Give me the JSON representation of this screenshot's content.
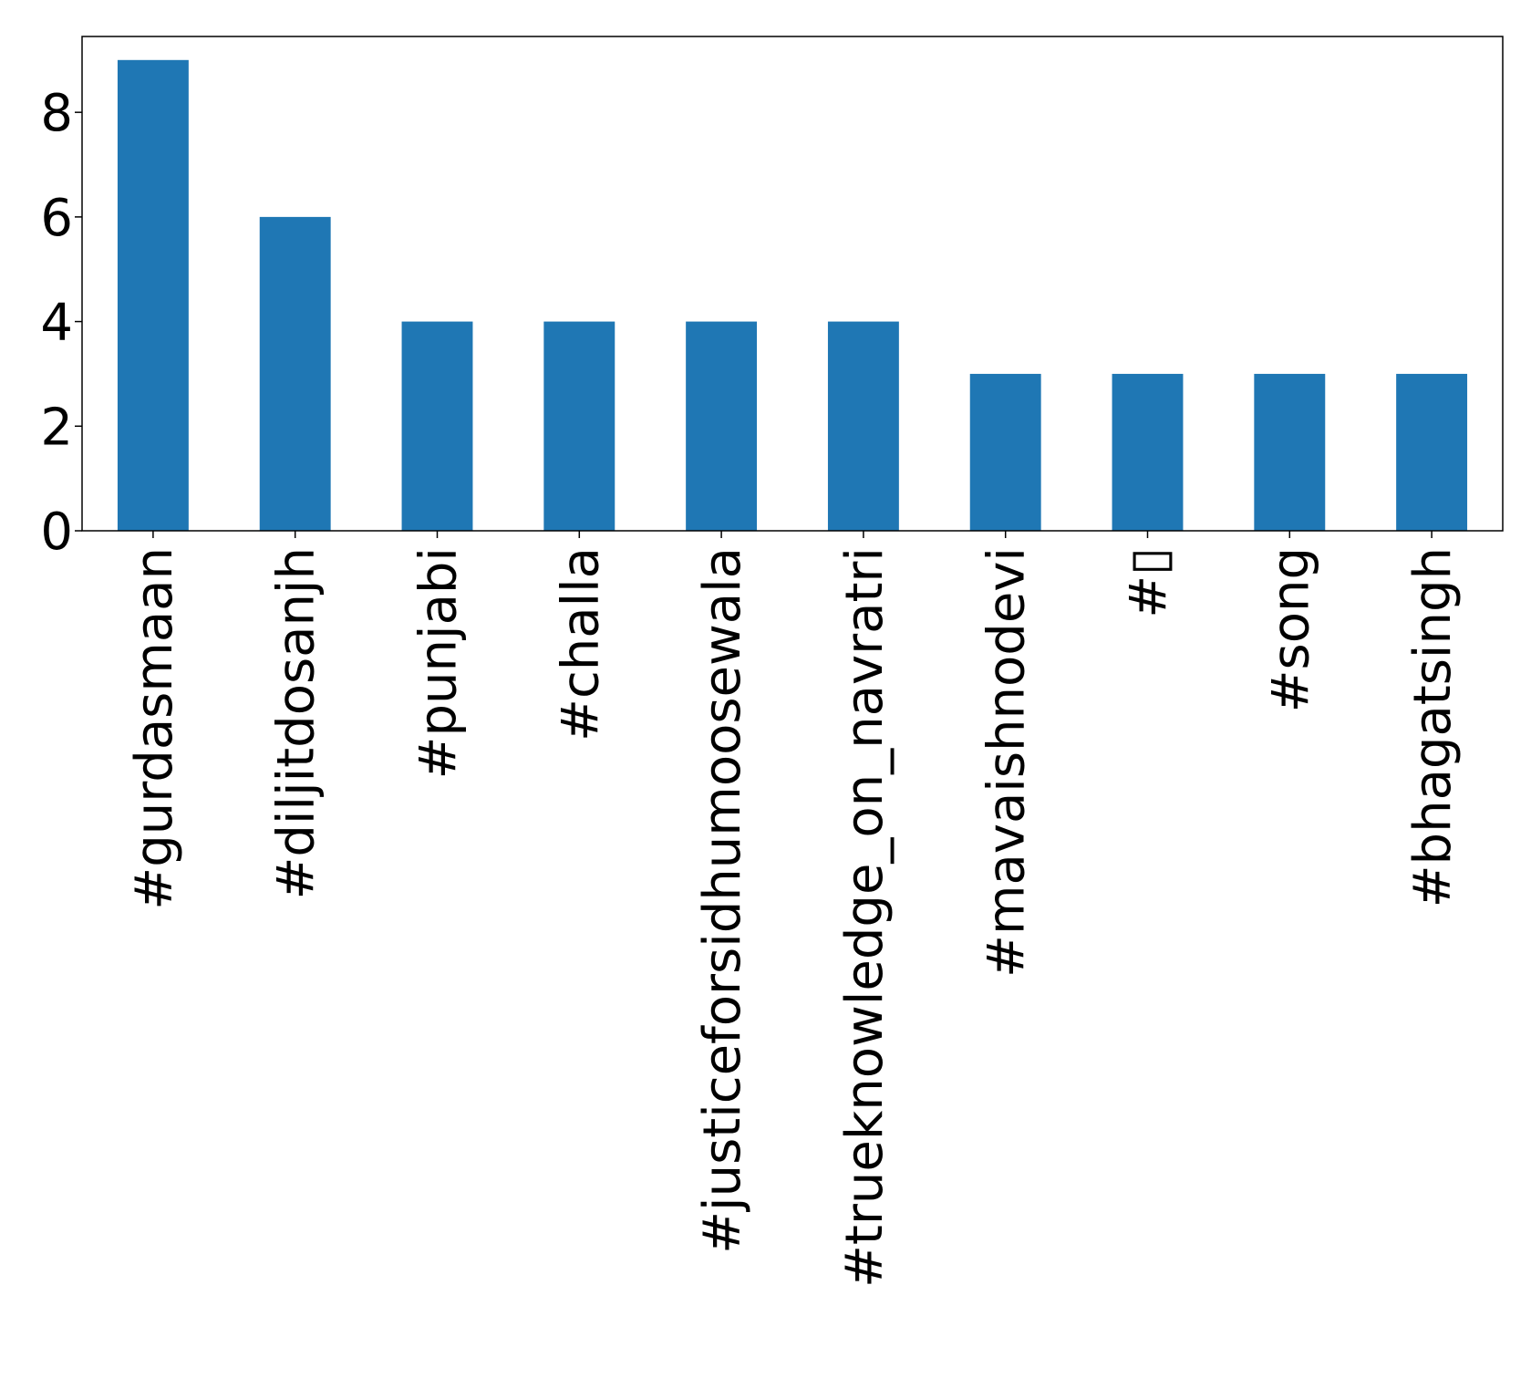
{
  "chart_data": {
    "type": "bar",
    "categories": [
      "#gurdasmaan",
      "#diljitdosanjh",
      "#punjabi",
      "#challa",
      "#justiceforsidhumoosewala",
      "#trueknowledge_on_navratri",
      "#mavaishnodevi",
      "#▯",
      "#song",
      "#bhagatsingh"
    ],
    "values": [
      9,
      6,
      4,
      4,
      4,
      4,
      3,
      3,
      3,
      3
    ],
    "title": "",
    "xlabel": "",
    "ylabel": "",
    "ylim": [
      0,
      9.45
    ],
    "yticks": [
      0,
      2,
      4,
      6,
      8
    ],
    "grid": false,
    "bar_color": "#1f77b4"
  }
}
